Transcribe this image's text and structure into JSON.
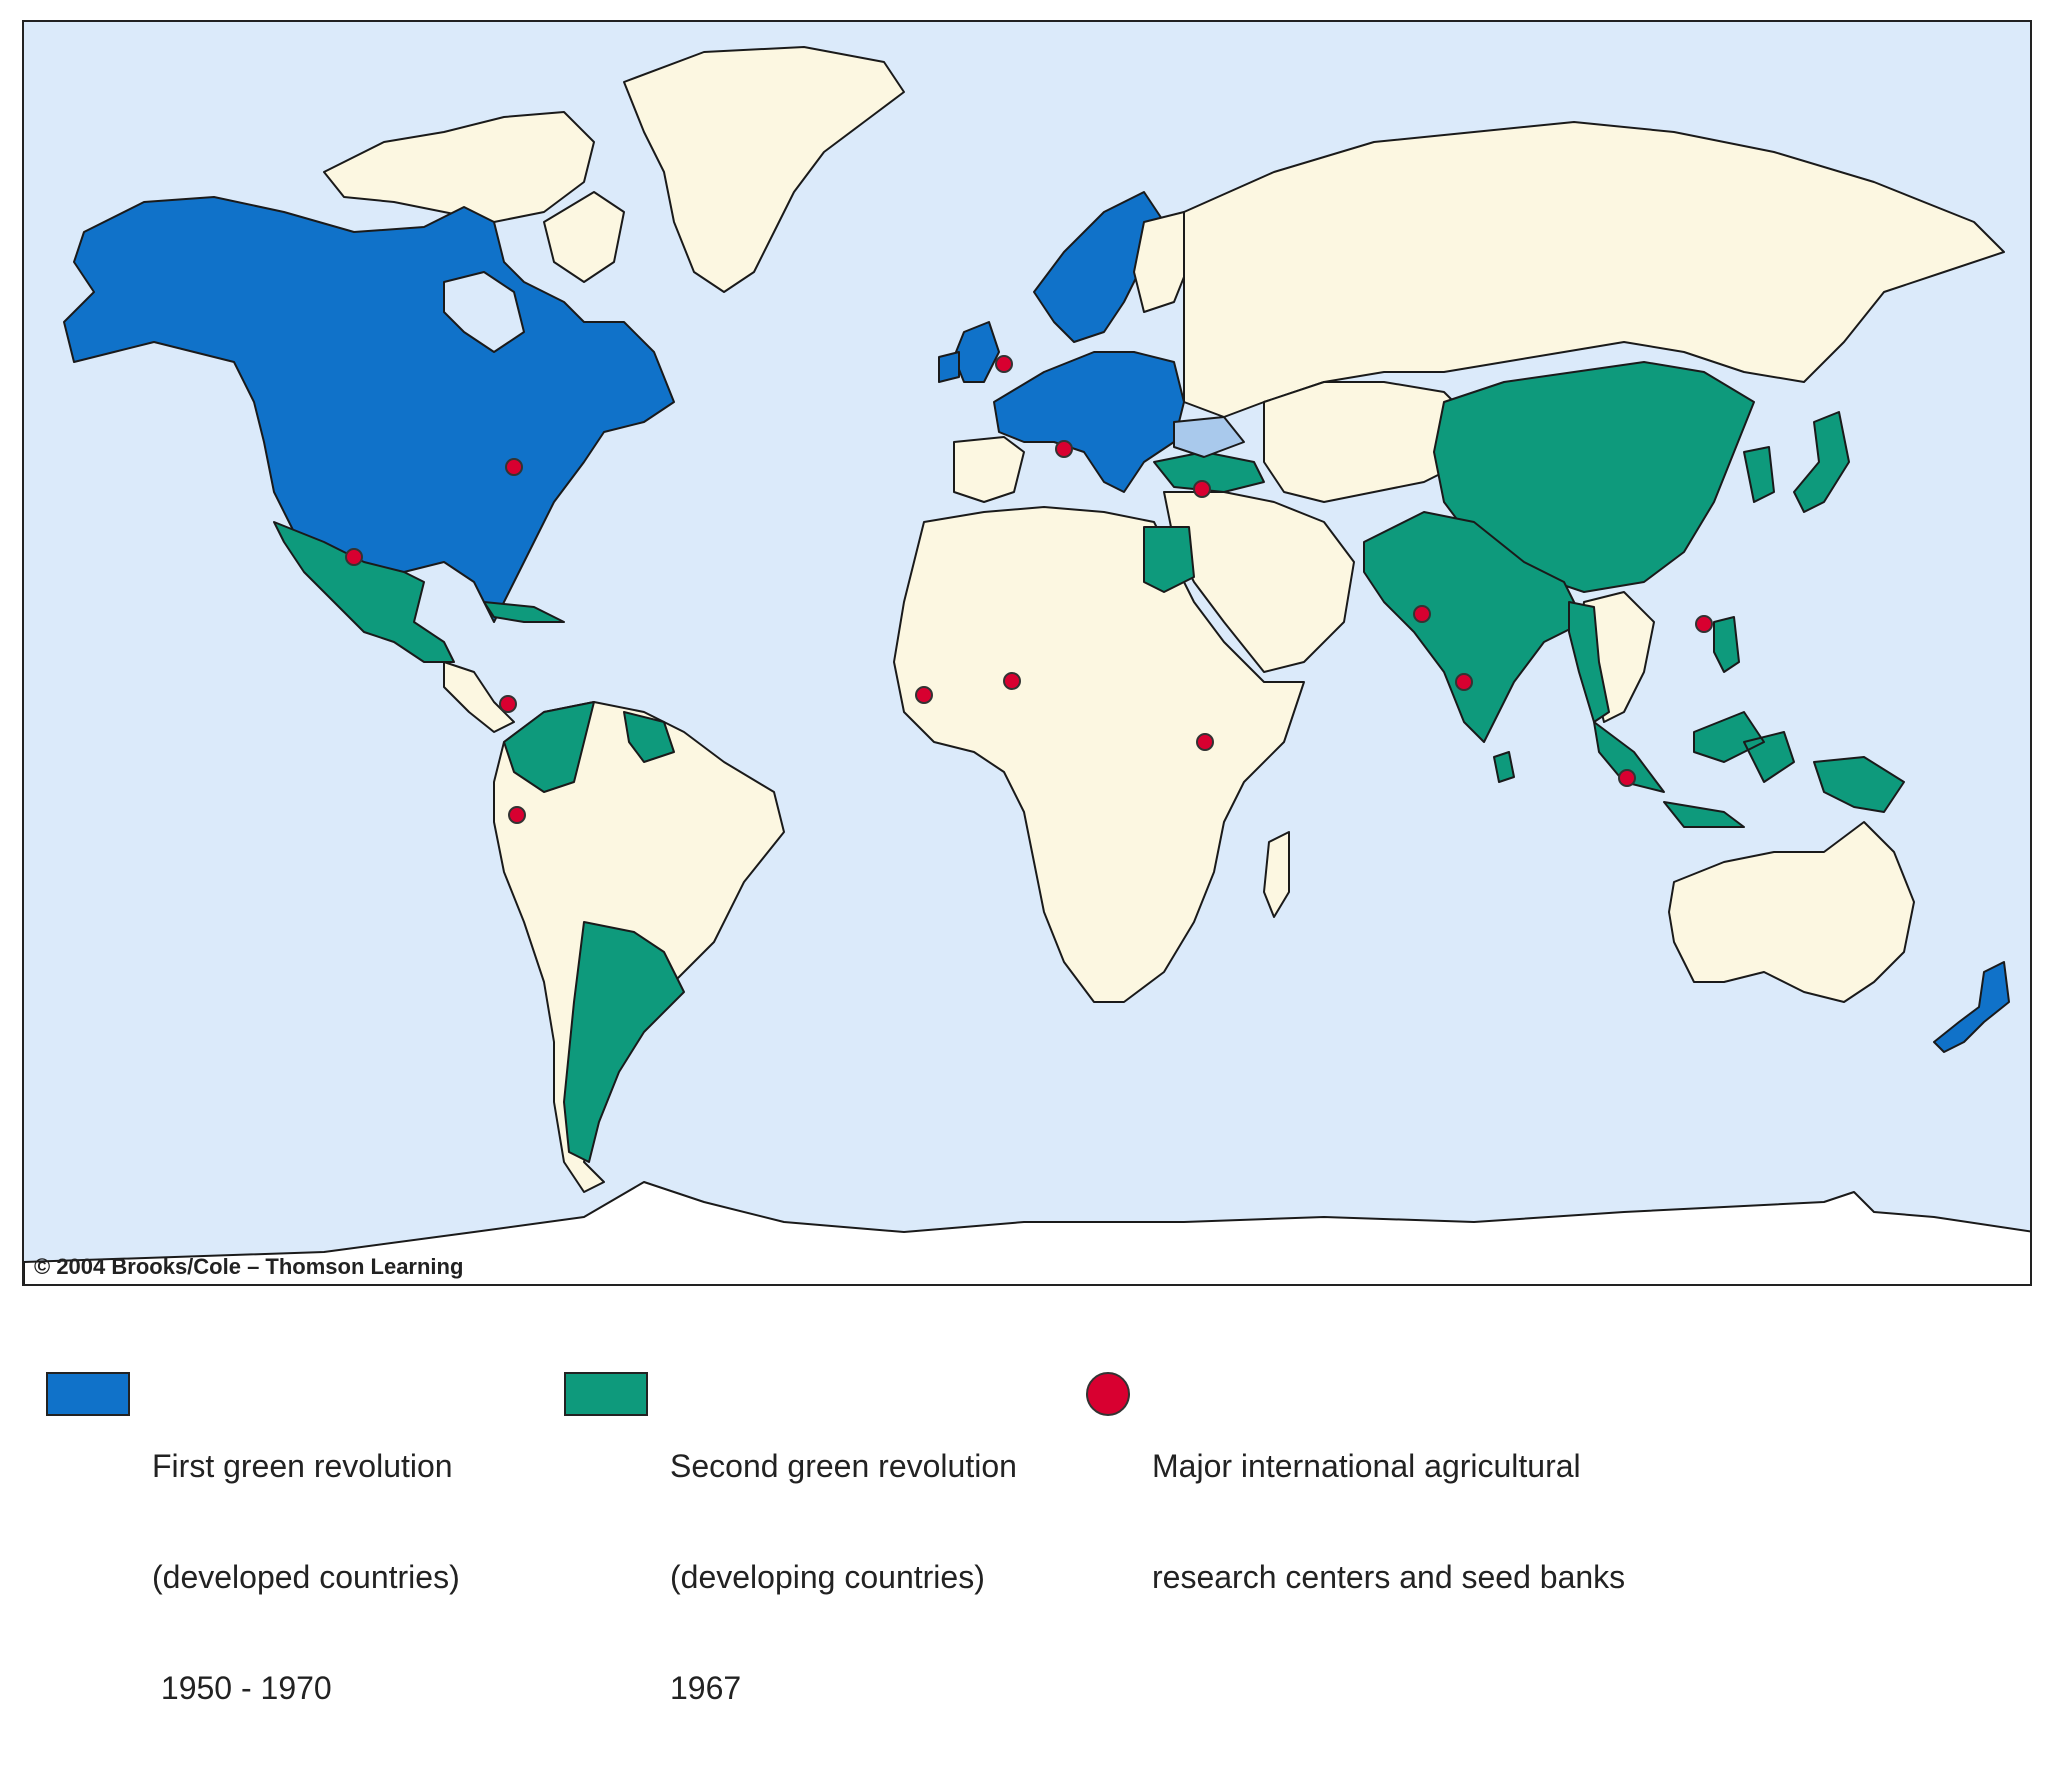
{
  "map": {
    "copyright": "© 2004 Brooks/Cole – Thomson Learning",
    "colors": {
      "ocean": "#dbeafa",
      "land": "#fcf7e1",
      "first_revolution": "#1072c9",
      "second_revolution": "#0e9a7c",
      "research_center": "#d80030",
      "light_blue_area": "#a9c9ec",
      "border": "#1a1a1a"
    },
    "first_revolution_regions": [
      "North America",
      "Western & Central Europe",
      "Scandinavia",
      "New Zealand"
    ],
    "second_revolution_regions": [
      "Mexico",
      "Colombia",
      "Venezuela",
      "Guyana",
      "Argentina",
      "Uruguay",
      "Cuba",
      "Egypt",
      "Turkey",
      "Pakistan",
      "India",
      "China",
      "South Korea",
      "Japan",
      "Philippines",
      "Indonesia",
      "Myanmar",
      "Bangladesh",
      "Sri Lanka",
      "Malaysia",
      "Papua New Guinea"
    ],
    "research_centers": [
      "Mexico",
      "Washington DC",
      "Netherlands",
      "Italy",
      "Syria",
      "Colombia",
      "Peru",
      "Liberia",
      "Nigeria",
      "Kenya",
      "India",
      "Sri Lanka",
      "Philippines",
      "Indonesia"
    ]
  },
  "legend": {
    "first": {
      "line1": "First green revolution",
      "line2": "(developed countries)",
      "line3": " 1950 - 1970"
    },
    "second": {
      "line1": "Second green revolution",
      "line2": "(developing countries)",
      "line3": "1967"
    },
    "centers": {
      "line1": "Major international agricultural",
      "line2": "research centers and seed banks"
    }
  }
}
